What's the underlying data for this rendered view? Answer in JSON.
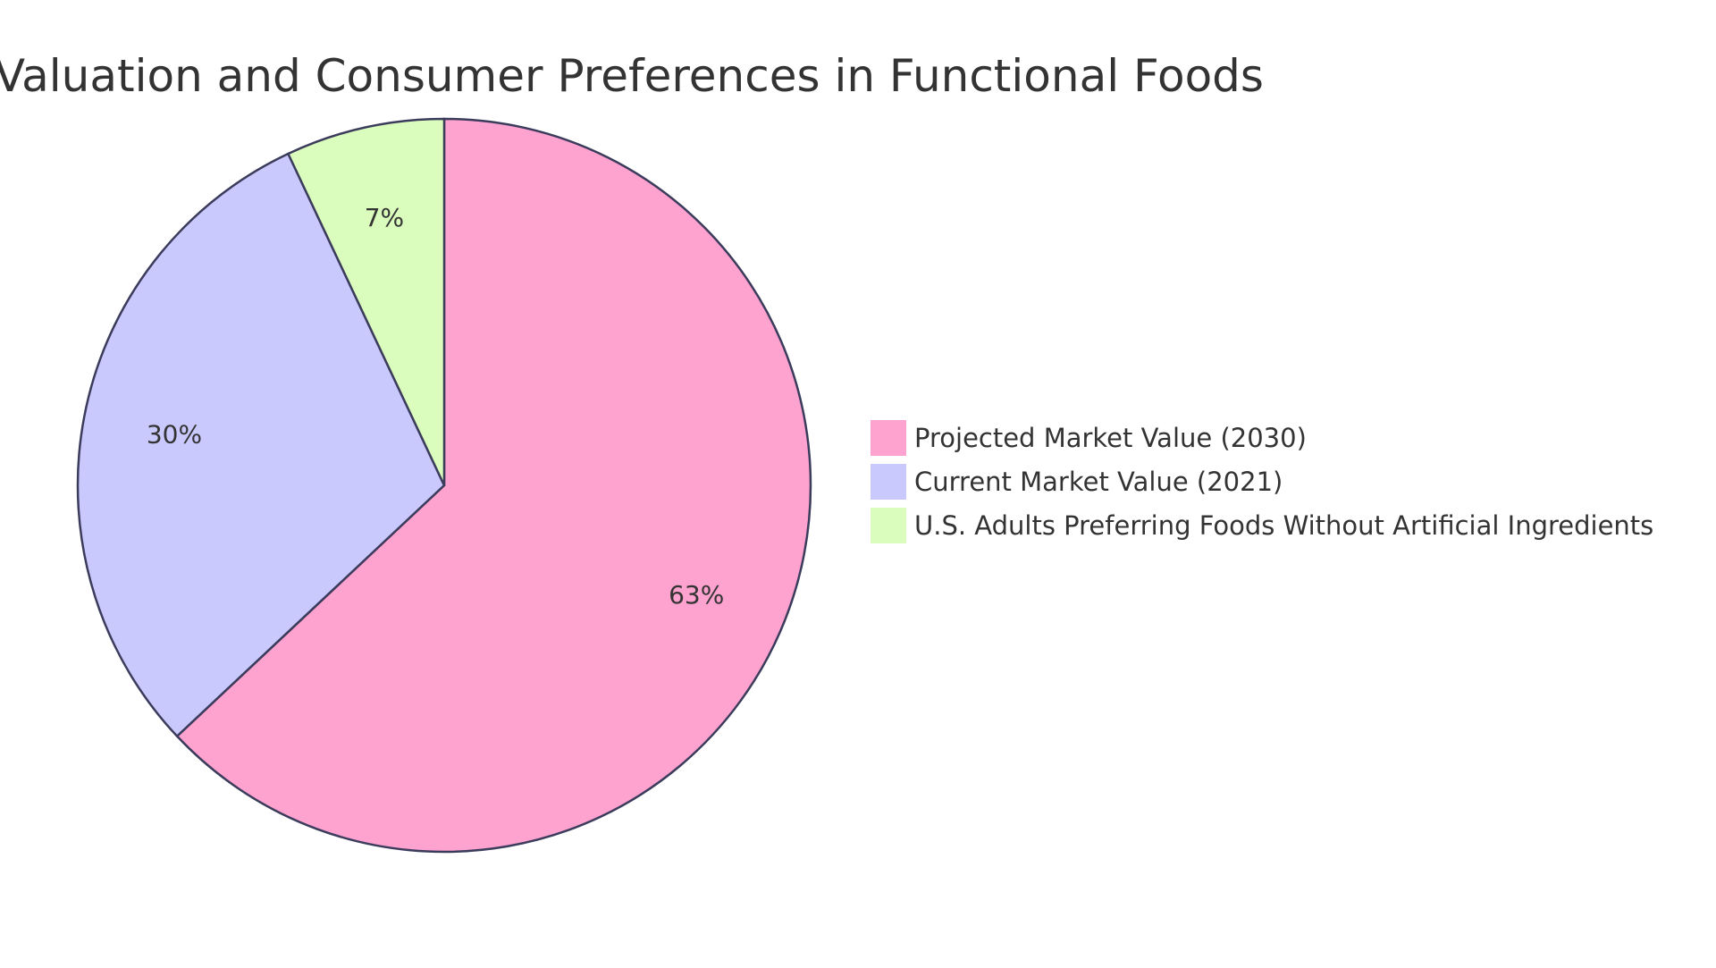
{
  "chart_data": {
    "type": "pie",
    "title": "Market Valuation and Consumer Preferences in Functional Foods",
    "slices": [
      {
        "label": "Projected Market Value (2030)",
        "value": 63,
        "display": "63%",
        "color": "#fea2cf"
      },
      {
        "label": "Current Market Value (2021)",
        "value": 30,
        "display": "30%",
        "color": "#c9c9fd"
      },
      {
        "label": "U.S. Adults Preferring Foods Without Artificial Ingredients",
        "value": 7,
        "display": "7%",
        "color": "#dafcbc"
      }
    ],
    "stroke_color": "#3b3b5c",
    "legend_position": "right"
  }
}
